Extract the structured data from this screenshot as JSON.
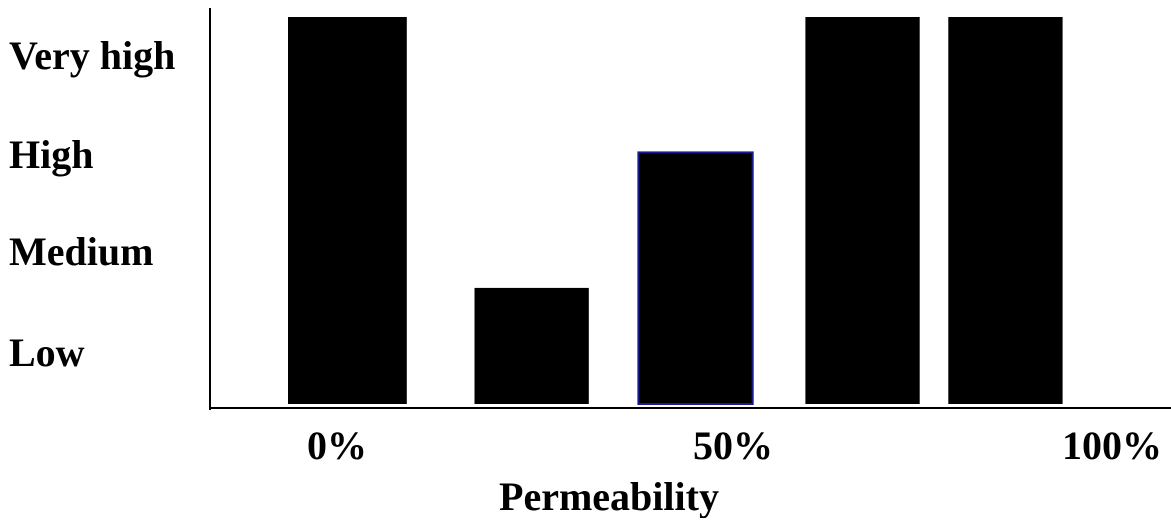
{
  "chart_data": {
    "type": "bar",
    "xlabel": "Permeability",
    "ylabel": "",
    "y_levels": [
      "Low",
      "Medium",
      "High",
      "Very high"
    ],
    "x_tick_labels": [
      {
        "label": "0%",
        "value": 0
      },
      {
        "label": "50%",
        "value": 50
      },
      {
        "label": "100%",
        "value": 100
      }
    ],
    "xlim": [
      0,
      100
    ],
    "ylim": [
      0,
      4
    ],
    "grid": false,
    "bars": [
      {
        "x_start": 0,
        "x_end": 15.8,
        "value": 4.0
      },
      {
        "x_start": 24.8,
        "x_end": 40.0,
        "value": 1.2
      },
      {
        "x_start": 46.6,
        "x_end": 61.8,
        "value": 2.6
      },
      {
        "x_start": 68.8,
        "x_end": 84.0,
        "value": 4.0
      },
      {
        "x_start": 87.8,
        "x_end": 103.0,
        "value": 4.0
      }
    ],
    "colors": {
      "bar_fill": "#000000",
      "highlight_stroke": "#1a1a8c"
    }
  }
}
